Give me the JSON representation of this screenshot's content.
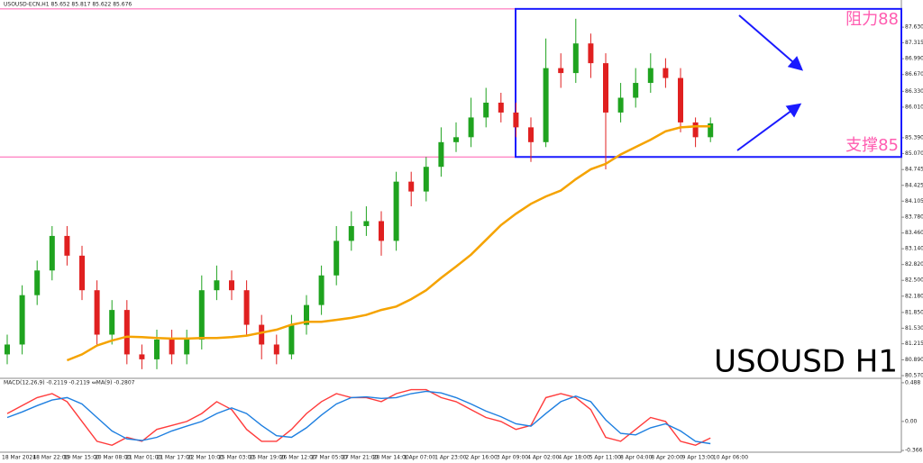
{
  "chart_data": {
    "type": "candlestick",
    "title": "USOUSD-ECN,H1  85.652 85.817 85.622 85.676",
    "watermark": "USOUSD H1",
    "up_color": "#1fa31f",
    "down_color": "#e02020",
    "open": [
      81.0,
      81.2,
      82.2,
      82.7,
      83.4,
      83.0,
      82.3,
      81.4,
      81.9,
      81.0,
      80.9,
      81.3,
      81.0,
      81.3,
      82.3,
      82.5,
      82.3,
      81.6,
      81.2,
      81.0,
      81.6,
      82.0,
      82.6,
      83.3,
      83.6,
      83.7,
      83.3,
      84.5,
      84.3,
      84.8,
      85.3,
      85.4,
      85.8,
      86.1,
      85.9,
      85.6,
      85.3,
      86.8,
      86.7,
      87.3,
      86.9,
      85.9,
      86.2,
      86.5,
      86.8,
      86.6,
      85.7,
      85.4
    ],
    "high": [
      81.4,
      82.4,
      82.9,
      83.6,
      83.6,
      83.2,
      82.5,
      82.1,
      82.1,
      81.2,
      81.5,
      81.5,
      81.5,
      82.6,
      82.8,
      82.7,
      82.5,
      81.8,
      81.4,
      81.8,
      82.2,
      82.8,
      83.6,
      83.9,
      84.0,
      83.9,
      84.7,
      84.7,
      85.0,
      85.6,
      85.7,
      86.2,
      86.4,
      86.3,
      86.1,
      85.8,
      87.4,
      87.1,
      87.8,
      87.5,
      87.1,
      86.5,
      86.8,
      87.1,
      87.0,
      86.8,
      85.8,
      85.8
    ],
    "low": [
      80.8,
      81.0,
      82.0,
      82.5,
      82.8,
      82.1,
      81.2,
      81.2,
      80.8,
      80.7,
      80.7,
      80.8,
      80.8,
      81.1,
      82.1,
      82.1,
      81.4,
      80.9,
      80.8,
      80.9,
      81.4,
      81.8,
      82.4,
      83.1,
      83.4,
      83.0,
      83.1,
      84.0,
      84.1,
      84.6,
      85.1,
      85.2,
      85.6,
      85.7,
      85.4,
      84.9,
      85.2,
      86.4,
      86.5,
      86.6,
      84.75,
      85.7,
      86.0,
      86.3,
      86.4,
      85.5,
      85.2,
      85.3
    ],
    "close": [
      81.2,
      82.2,
      82.7,
      83.4,
      83.0,
      82.3,
      81.4,
      81.9,
      81.0,
      80.9,
      81.3,
      81.0,
      81.3,
      82.3,
      82.5,
      82.3,
      81.6,
      81.2,
      81.0,
      81.6,
      82.0,
      82.6,
      83.3,
      83.6,
      83.7,
      83.3,
      84.5,
      84.3,
      84.8,
      85.3,
      85.4,
      85.8,
      86.1,
      85.9,
      85.6,
      85.3,
      86.8,
      86.7,
      87.3,
      86.9,
      85.9,
      86.2,
      86.5,
      86.8,
      86.6,
      85.7,
      85.4,
      85.68
    ],
    "ma": {
      "color": "#f5a300",
      "values": [
        null,
        null,
        null,
        null,
        80.88,
        81.0,
        81.18,
        81.28,
        81.36,
        81.35,
        81.33,
        81.32,
        81.32,
        81.33,
        81.33,
        81.35,
        81.38,
        81.44,
        81.5,
        81.6,
        81.66,
        81.66,
        81.7,
        81.74,
        81.8,
        81.9,
        81.97,
        82.12,
        82.3,
        82.55,
        82.78,
        83.02,
        83.32,
        83.62,
        83.85,
        84.05,
        84.2,
        84.32,
        84.55,
        84.75,
        84.86,
        85.05,
        85.2,
        85.35,
        85.52,
        85.6,
        85.62,
        85.62
      ]
    },
    "hlines": [
      {
        "value": 88,
        "label": "阻力88"
      },
      {
        "value": 85,
        "label": "支撑85"
      }
    ],
    "hline_color": "#ff5cb0",
    "box_color": "#1a1aff",
    "ylim": [
      80.515,
      88.18
    ],
    "yticks": [
      {
        "value": 80.57,
        "label": "80.570"
      },
      {
        "value": 80.89,
        "label": "80.890"
      },
      81.215,
      {
        "value": 81.53,
        "label": "81.530"
      },
      {
        "value": 81.85,
        "label": "81.850"
      },
      {
        "value": 82.18,
        "label": "82.180"
      },
      {
        "value": 82.5,
        "label": "82.500"
      },
      {
        "value": 82.82,
        "label": "82.820"
      },
      {
        "value": 83.14,
        "label": "83.140"
      },
      {
        "value": 83.46,
        "label": "83.460"
      },
      {
        "value": 83.78,
        "label": "83.780"
      },
      84.105,
      84.425,
      84.745,
      {
        "value": 85.07,
        "label": "85.070"
      },
      {
        "value": 85.39,
        "label": "85.390"
      },
      {
        "value": 86.01,
        "label": "86.010"
      },
      {
        "value": 86.33,
        "label": "86.330"
      },
      {
        "value": 86.67,
        "label": "86.670"
      },
      {
        "value": 86.99,
        "label": "86.990"
      },
      87.315,
      {
        "value": 87.63,
        "label": "87.630"
      }
    ],
    "x_labels": [
      "18 Mar 2024",
      "18 Mar 22:00",
      "19 Mar 15:00",
      "20 Mar 08:00",
      "21 Mar 01:00",
      "21 Mar 17:00",
      "22 Mar 10:00",
      "25 Mar 03:00",
      "25 Mar 19:00",
      "26 Mar 12:00",
      "27 Mar 05:00",
      "27 Mar 21:00",
      "28 Mar 14:00",
      "1 Apr 07:00",
      "1 Apr 23:00",
      "2 Apr 16:00",
      "3 Apr 09:00",
      "4 Apr 02:00",
      "4 Apr 18:00",
      "5 Apr 11:00",
      "8 Apr 04:00",
      "8 Apr 20:00",
      "9 Apr 13:00",
      "10 Apr 06:00"
    ],
    "macd": {
      "title": "MACD(12,26,9) -0.2119 -0.2119 ⇔MA(9) -0.2807",
      "ylim": [
        -0.388,
        0.521
      ],
      "yticks": [
        0.488,
        {
          "value": 0,
          "label": "0.00"
        },
        -0.366
      ],
      "series": [
        {
          "color": "#ff3b3b",
          "values": [
            0.1,
            0.2,
            0.3,
            0.35,
            0.25,
            0.0,
            -0.25,
            -0.3,
            -0.2,
            -0.25,
            -0.1,
            -0.05,
            0.0,
            0.1,
            0.25,
            0.15,
            -0.1,
            -0.25,
            -0.25,
            -0.1,
            0.1,
            0.25,
            0.35,
            0.3,
            0.3,
            0.25,
            0.35,
            0.4,
            0.4,
            0.3,
            0.25,
            0.15,
            0.05,
            0.0,
            -0.1,
            -0.05,
            0.3,
            0.35,
            0.3,
            0.15,
            -0.2,
            -0.25,
            -0.1,
            0.05,
            0.0,
            -0.25,
            -0.3,
            -0.21
          ]
        },
        {
          "color": "#1e7fe0",
          "values": [
            0.05,
            0.12,
            0.2,
            0.27,
            0.3,
            0.22,
            0.05,
            -0.12,
            -0.22,
            -0.24,
            -0.2,
            -0.12,
            -0.06,
            0.0,
            0.1,
            0.17,
            0.1,
            -0.05,
            -0.18,
            -0.2,
            -0.08,
            0.08,
            0.22,
            0.3,
            0.31,
            0.29,
            0.3,
            0.35,
            0.38,
            0.36,
            0.3,
            0.22,
            0.13,
            0.06,
            -0.03,
            -0.06,
            0.1,
            0.25,
            0.32,
            0.25,
            0.02,
            -0.15,
            -0.17,
            -0.08,
            -0.03,
            -0.12,
            -0.25,
            -0.28
          ]
        }
      ]
    }
  }
}
